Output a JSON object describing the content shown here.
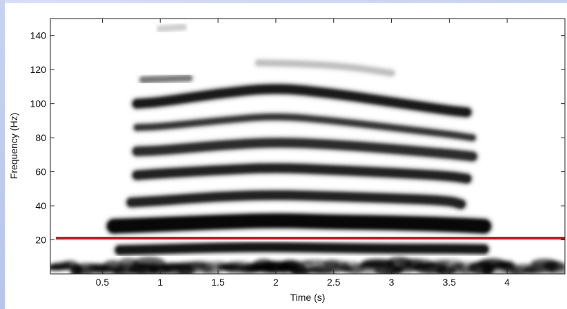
{
  "chart_data": {
    "type": "heatmap",
    "subtype": "spectrogram",
    "colormap": "grayscale (white = low, black = high energy)",
    "xlabel": "Time (s)",
    "ylabel": "Frequency (Hz)",
    "xlim": [
      0.05,
      4.5
    ],
    "ylim": [
      0,
      150
    ],
    "x_ticks": [
      0.5,
      1,
      1.5,
      2,
      2.5,
      3,
      3.5,
      4
    ],
    "x_tick_labels": [
      "0.5",
      "1",
      "1.5",
      "2",
      "2.5",
      "3",
      "3.5",
      "4"
    ],
    "y_ticks": [
      20,
      40,
      60,
      80,
      100,
      120,
      140
    ],
    "y_tick_labels": [
      "20",
      "40",
      "60",
      "80",
      "100",
      "120",
      "140"
    ],
    "grid": false,
    "reference_line": {
      "orientation": "horizontal",
      "y": 21,
      "color": "#e01010"
    },
    "harmonics": [
      {
        "points": [
          [
            0.65,
            14
          ],
          [
            1.0,
            14.5
          ],
          [
            1.5,
            15.5
          ],
          [
            2.0,
            15.8
          ],
          [
            2.5,
            15.2
          ],
          [
            3.0,
            14.8
          ],
          [
            3.5,
            14.8
          ],
          [
            3.8,
            14.5
          ]
        ],
        "intensity": 0.92
      },
      {
        "points": [
          [
            0.6,
            28
          ],
          [
            1.0,
            29
          ],
          [
            1.5,
            30.5
          ],
          [
            2.0,
            31.5
          ],
          [
            2.5,
            30.5
          ],
          [
            3.0,
            30
          ],
          [
            3.5,
            29
          ],
          [
            3.8,
            28
          ]
        ],
        "intensity": 1.0
      },
      {
        "points": [
          [
            0.75,
            42
          ],
          [
            1.0,
            43
          ],
          [
            1.5,
            45.5
          ],
          [
            2.0,
            46.5
          ],
          [
            2.5,
            45.5
          ],
          [
            3.0,
            44.5
          ],
          [
            3.5,
            43
          ],
          [
            3.6,
            41
          ]
        ],
        "intensity": 0.85
      },
      {
        "points": [
          [
            0.8,
            58
          ],
          [
            1.0,
            59
          ],
          [
            1.5,
            61
          ],
          [
            2.0,
            62.5
          ],
          [
            2.5,
            61
          ],
          [
            3.0,
            59.5
          ],
          [
            3.5,
            57.5
          ],
          [
            3.65,
            56
          ]
        ],
        "intensity": 0.85
      },
      {
        "points": [
          [
            0.8,
            72
          ],
          [
            1.0,
            72.5
          ],
          [
            1.5,
            75.5
          ],
          [
            2.0,
            77.5
          ],
          [
            2.5,
            76
          ],
          [
            3.0,
            73.5
          ],
          [
            3.5,
            70.5
          ],
          [
            3.7,
            69
          ]
        ],
        "intensity": 0.8
      },
      {
        "points": [
          [
            0.8,
            86
          ],
          [
            1.0,
            86.5
          ],
          [
            1.5,
            90
          ],
          [
            2.0,
            93
          ],
          [
            2.5,
            90
          ],
          [
            3.0,
            86
          ],
          [
            3.5,
            82
          ],
          [
            3.7,
            80
          ]
        ],
        "intensity": 0.75
      },
      {
        "points": [
          [
            0.8,
            100
          ],
          [
            1.0,
            101
          ],
          [
            1.5,
            106
          ],
          [
            2.0,
            109.5
          ],
          [
            2.5,
            106
          ],
          [
            3.0,
            101
          ],
          [
            3.5,
            96
          ],
          [
            3.65,
            95
          ]
        ],
        "intensity": 0.9
      },
      {
        "points": [
          [
            0.85,
            114
          ],
          [
            1.05,
            114.5
          ],
          [
            1.25,
            115
          ]
        ],
        "intensity": 0.45
      },
      {
        "points": [
          [
            1.85,
            124
          ],
          [
            2.2,
            123.5
          ],
          [
            2.6,
            122
          ],
          [
            3.0,
            118
          ]
        ],
        "intensity": 0.2
      },
      {
        "points": [
          [
            1.0,
            144
          ],
          [
            1.2,
            145
          ]
        ],
        "intensity": 0.15
      }
    ],
    "low_frequency_noise": {
      "y_range": [
        0,
        8
      ],
      "x_range": [
        0.05,
        4.5
      ],
      "intensity": 0.8
    }
  }
}
